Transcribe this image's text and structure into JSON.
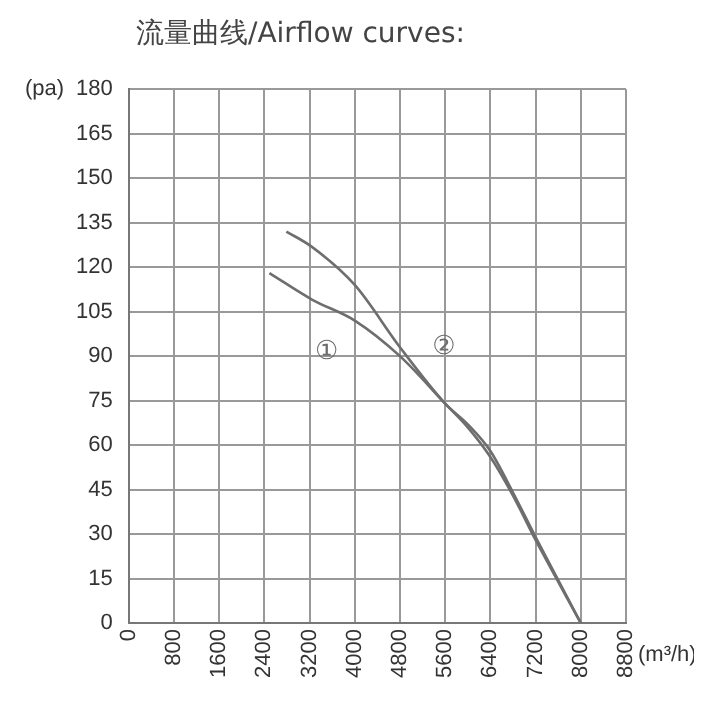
{
  "chart_data": {
    "type": "line",
    "title": "流量曲线/Airflow curves:",
    "xlabel": "(m³/h)",
    "ylabel": "(pa)",
    "series": [
      {
        "name": "①",
        "color": "#6e6e6e",
        "x": [
          2490,
          3250,
          4000,
          4800,
          5600,
          6000,
          6400,
          6800,
          7200,
          8000
        ],
        "values": [
          118,
          109,
          102,
          90,
          74,
          66,
          56,
          43,
          28,
          0
        ]
      },
      {
        "name": "②",
        "color": "#6e6e6e",
        "x": [
          2790,
          3230,
          4000,
          4800,
          5600,
          6000,
          6400,
          6800,
          7200,
          8000
        ],
        "values": [
          132,
          127,
          114,
          93,
          74,
          67,
          58,
          44,
          29,
          0
        ]
      }
    ],
    "xlim": [
      0,
      8800
    ],
    "xticks": [
      0,
      800,
      1600,
      2400,
      3200,
      4000,
      4800,
      5600,
      6400,
      7200,
      8000,
      8800
    ],
    "ylim": [
      0,
      180
    ],
    "yticks": [
      0,
      15,
      30,
      45,
      60,
      75,
      90,
      105,
      120,
      135,
      150,
      165,
      180
    ],
    "grid": true,
    "legend": false,
    "marker": "none",
    "line_style": "solid"
  }
}
